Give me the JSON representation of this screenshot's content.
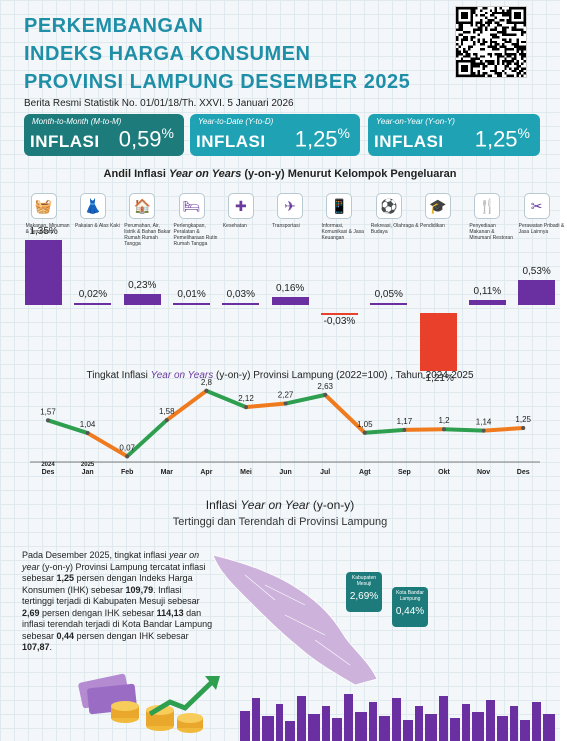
{
  "header": {
    "title_lines": [
      "PERKEMBANGAN",
      "INDEKS HARGA KONSUMEN",
      "PROVINSI LAMPUNG DESEMBER 2025"
    ],
    "subtitle": "Berita Resmi Statistik No. 01/01/18/Th. XXVI. 5 Januari 2026"
  },
  "cards": [
    {
      "period": "Month-to-Month (M-to-M)",
      "label": "INFLASI",
      "value": "0,59",
      "unit": "%",
      "color": "#1e7b7c"
    },
    {
      "period": "Year-to-Date (Y-to-D)",
      "label": "INFLASI",
      "value": "1,25",
      "unit": "%",
      "color": "#1fa3b4"
    },
    {
      "period": "Year-on-Year (Y-on-Y)",
      "label": "INFLASI",
      "value": "1,25",
      "unit": "%",
      "color": "#1fa3b4"
    }
  ],
  "andil": {
    "title_prefix": "Andil Inflasi ",
    "title_em": "Year on Years",
    "title_suffix": " (y-on-y) Menurut Kelompok Pengeluaran",
    "chart_data": {
      "type": "bar",
      "categories": [
        "Makanan, Minuman & Tembakau",
        "Pakaian & Alas Kaki",
        "Perumahan, Air, listrik & Bahan Bakar Rumah Rumah Tangga",
        "Perlengkapan, Peralatan & Pemeliharaan Rutin Rumah Tangga",
        "Kesehatan",
        "Transportasi",
        "Informasi, Komunikasi & Jasa Keuangan",
        "Rekreasi, Olahraga & Budaya",
        "Pendidikan",
        "Penyediaan Makanan & Minuman/ Restoran",
        "Perawatan Pribadi & Jasa Lainnya"
      ],
      "values": [
        1.35,
        0.02,
        0.23,
        0.01,
        0.03,
        0.16,
        -0.03,
        0.05,
        -1.21,
        0.11,
        0.53
      ],
      "labels": [
        "1,35%",
        "0,02%",
        "0,23%",
        "0,01%",
        "0,03%",
        "0,16%",
        "-0,03%",
        "0,05%",
        "-1,21%",
        "0,11%",
        "0,53%"
      ],
      "positive_color": "#6a2fa0",
      "negative_color": "#e8402a"
    },
    "icons": [
      "basket-icon",
      "dress-icon",
      "house-icon",
      "bed-icon",
      "medkit-icon",
      "plane-icon",
      "phone-icon",
      "sport-icon",
      "graduation-icon",
      "food-icon",
      "tools-icon"
    ],
    "icon_glyphs": [
      "🧺",
      "👗",
      "🏠",
      "🛏",
      "✚",
      "✈",
      "📱",
      "⚽",
      "🎓",
      "🍴",
      "✂"
    ]
  },
  "trend": {
    "title_prefix": "Tingkat Inflasi ",
    "title_em": "Year on Years",
    "title_suffix": " (y-on-y) Provinsi Lampung (2022=100) , Tahun 2024-2025",
    "chart_data": {
      "type": "line",
      "x": [
        "Des",
        "Jan",
        "Feb",
        "Mar",
        "Apr",
        "Mei",
        "Jun",
        "Jul",
        "Agt",
        "Sep",
        "Okt",
        "Nov",
        "Des"
      ],
      "y": [
        1.57,
        1.04,
        0.07,
        1.58,
        2.8,
        2.12,
        2.27,
        2.63,
        1.05,
        1.17,
        1.2,
        1.14,
        1.25
      ],
      "labels": [
        "1,57",
        "1,04",
        "0,07",
        "1,58",
        "2,8",
        "2,12",
        "2,27",
        "2,63",
        "1,05",
        "1,17",
        "1,2",
        "1,14",
        "1,25"
      ],
      "year_labels": [
        "2024",
        "2025"
      ],
      "colors": [
        "#2e9e4f",
        "#f07a1e"
      ]
    }
  },
  "regional": {
    "title_prefix": "Inflasi ",
    "title_em": "Year on Year",
    "title_suffix": " (y-on-y)",
    "subtitle": "Tertinggi dan Terendah di Provinsi Lampung",
    "paragraph": [
      {
        "t": "Pada Desember 2025, tingkat inflasi "
      },
      {
        "t": "year on year",
        "i": true
      },
      {
        "t": " (y-on-y) Provinsi Lampung tercatat inflasi sebesar "
      },
      {
        "t": "1,25",
        "b": true
      },
      {
        "t": " persen dengan Indeks Harga Konsumen (IHK) sebesar "
      },
      {
        "t": "109,79",
        "b": true
      },
      {
        "t": ". Inflasi tertinggi terjadi di Kabupaten Mesuji sebesar "
      },
      {
        "t": "2,69",
        "b": true
      },
      {
        "t": " persen dengan IHK sebesar "
      },
      {
        "t": "114,13",
        "b": true
      },
      {
        "t": " dan inflasi terendah terjadi di Kota Bandar Lampung sebesar "
      },
      {
        "t": "0,44",
        "b": true
      },
      {
        "t": " persen dengan IHK sebesar "
      },
      {
        "t": "107,87",
        "b": true
      },
      {
        "t": "."
      }
    ],
    "pins": [
      {
        "name": "Kabupaten Mesuji",
        "value": "2,69%",
        "color": "#1e7b7c"
      },
      {
        "name": "Kota Bandar Lampung",
        "value": "0,44%",
        "color": "#1e7b7c"
      }
    ]
  }
}
